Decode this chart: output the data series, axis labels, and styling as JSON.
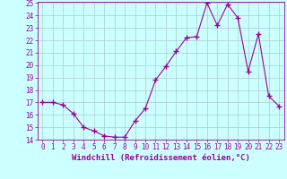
{
  "x": [
    0,
    1,
    2,
    3,
    4,
    5,
    6,
    7,
    8,
    9,
    10,
    11,
    12,
    13,
    14,
    15,
    16,
    17,
    18,
    19,
    20,
    21,
    22,
    23
  ],
  "y": [
    17.0,
    17.0,
    16.8,
    16.1,
    15.0,
    14.7,
    14.3,
    14.2,
    14.2,
    15.5,
    16.5,
    18.8,
    19.9,
    21.1,
    22.2,
    22.3,
    25.0,
    23.2,
    24.9,
    23.8,
    19.5,
    22.5,
    17.5,
    16.7
  ],
  "line_color": "#990099",
  "marker": "+",
  "marker_size": 4,
  "background_color": "#ccffff",
  "grid_color": "#aacccc",
  "xlabel": "Windchill (Refroidissement éolien,°C)",
  "xlabel_color": "#990099",
  "ylim": [
    14,
    25
  ],
  "xlim": [
    -0.5,
    23.5
  ],
  "yticks": [
    14,
    15,
    16,
    17,
    18,
    19,
    20,
    21,
    22,
    23,
    24,
    25
  ],
  "xticks": [
    0,
    1,
    2,
    3,
    4,
    5,
    6,
    7,
    8,
    9,
    10,
    11,
    12,
    13,
    14,
    15,
    16,
    17,
    18,
    19,
    20,
    21,
    22,
    23
  ],
  "tick_color": "#990099",
  "tick_fontsize": 5.5,
  "xlabel_fontsize": 6.5
}
